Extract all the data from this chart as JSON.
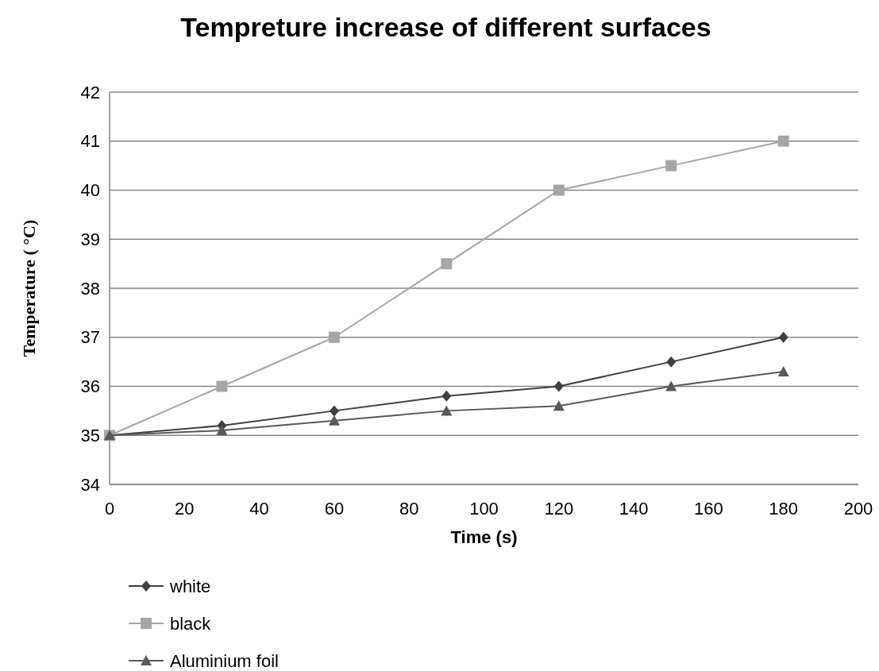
{
  "chart_data": {
    "type": "line",
    "title": "Tempreture increase of different surfaces",
    "xlabel": "Time (s)",
    "ylabel": "Temperature ( °C)",
    "x": [
      0,
      30,
      60,
      90,
      120,
      150,
      180
    ],
    "series": [
      {
        "name": "white",
        "color": "#404040",
        "marker": "diamond",
        "values": [
          35,
          35.2,
          35.5,
          35.8,
          36,
          36.5,
          37
        ]
      },
      {
        "name": "black",
        "color": "#a6a6a6",
        "marker": "square",
        "values": [
          35,
          36,
          37,
          38.5,
          40,
          40.5,
          41
        ]
      },
      {
        "name": "Aluminium foil",
        "color": "#595959",
        "marker": "triangle",
        "values": [
          35,
          35.1,
          35.3,
          35.5,
          35.6,
          36,
          36.3
        ]
      }
    ],
    "xlim": [
      0,
      200
    ],
    "xticks": [
      0,
      20,
      40,
      60,
      80,
      100,
      120,
      140,
      160,
      180,
      200
    ],
    "ylim": [
      34,
      42
    ],
    "yticks": [
      34,
      35,
      36,
      37,
      38,
      39,
      40,
      41,
      42
    ],
    "grid": "y",
    "legend": "bottom left",
    "line_style": "solid"
  }
}
